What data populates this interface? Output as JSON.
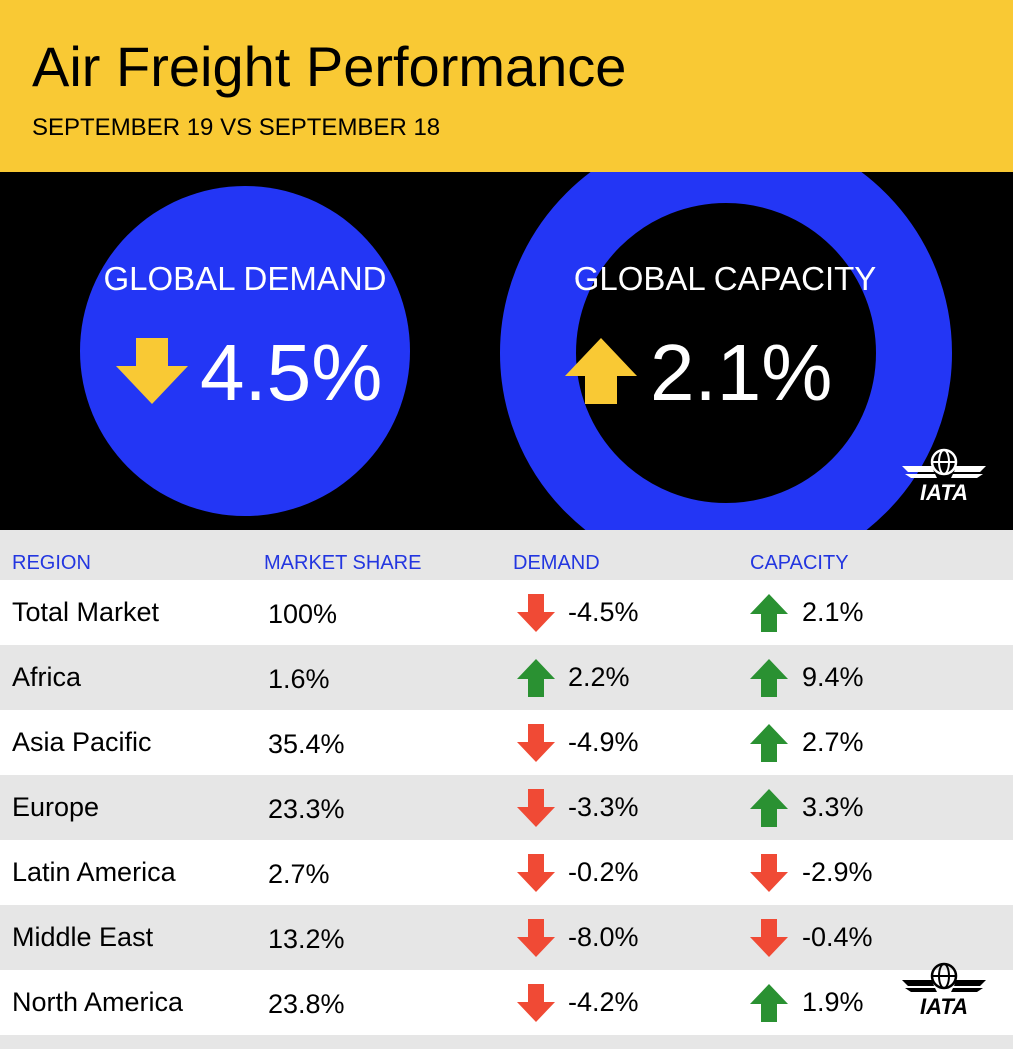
{
  "header": {
    "title": "Air Freight Performance",
    "subtitle": "SEPTEMBER 19 VS SEPTEMBER 18"
  },
  "hero": {
    "demand": {
      "label": "GLOBAL DEMAND",
      "value": "4.5%",
      "direction": "down"
    },
    "capacity": {
      "label": "GLOBAL CAPACITY",
      "value": "2.1%",
      "direction": "up"
    },
    "logo": "IATA"
  },
  "colors": {
    "yellow": "#f9c934",
    "blue": "#2336f5",
    "up": "#2a9132",
    "down": "#f04a35"
  },
  "table": {
    "headers": [
      "REGION",
      "MARKET SHARE",
      "DEMAND",
      "CAPACITY"
    ],
    "rows": [
      {
        "region": "Total Market",
        "share": "100%",
        "demand": "-4.5%",
        "demand_dir": "down",
        "capacity": "2.1%",
        "capacity_dir": "up"
      },
      {
        "region": "Africa",
        "share": "1.6%",
        "demand": "2.2%",
        "demand_dir": "up",
        "capacity": "9.4%",
        "capacity_dir": "up"
      },
      {
        "region": "Asia Pacific",
        "share": "35.4%",
        "demand": "-4.9%",
        "demand_dir": "down",
        "capacity": "2.7%",
        "capacity_dir": "up"
      },
      {
        "region": "Europe",
        "share": "23.3%",
        "demand": "-3.3%",
        "demand_dir": "down",
        "capacity": "3.3%",
        "capacity_dir": "up"
      },
      {
        "region": "Latin America",
        "share": "2.7%",
        "demand": "-0.2%",
        "demand_dir": "down",
        "capacity": "-2.9%",
        "capacity_dir": "down"
      },
      {
        "region": "Middle East",
        "share": "13.2%",
        "demand": "-8.0%",
        "demand_dir": "down",
        "capacity": "-0.4%",
        "capacity_dir": "down"
      },
      {
        "region": "North America",
        "share": "23.8%",
        "demand": "-4.2%",
        "demand_dir": "down",
        "capacity": "1.9%",
        "capacity_dir": "up"
      }
    ]
  }
}
